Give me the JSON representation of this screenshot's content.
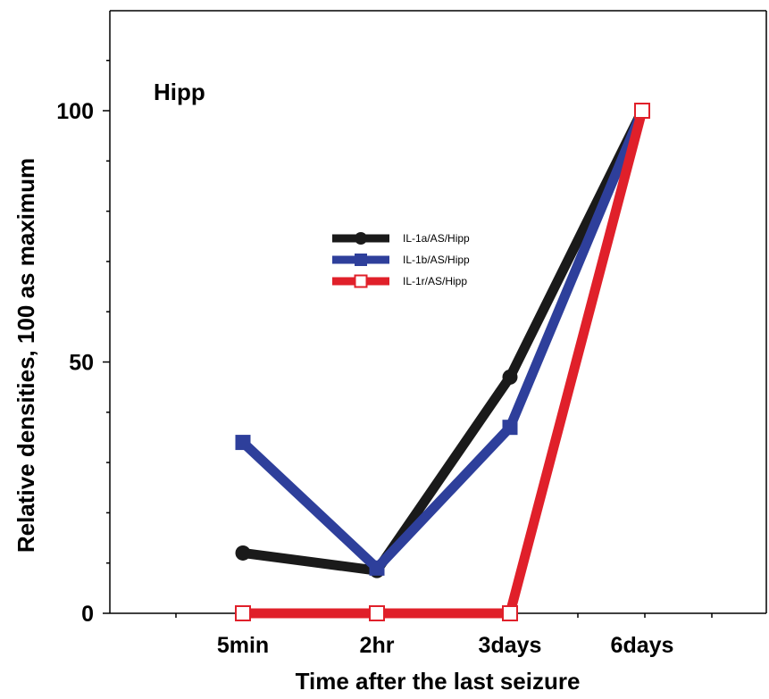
{
  "chart_data": {
    "type": "line",
    "categories": [
      "5min",
      "2hr",
      "3days",
      "6days"
    ],
    "ylim": [
      0,
      115
    ],
    "yticks": [
      0,
      50,
      100
    ],
    "ylabel": "Relative densities, 100 as maximum",
    "xlabel": "Time after the last seizure",
    "annotation": "Hipp",
    "grid": false,
    "legend_position": "center",
    "series": [
      {
        "name": "IL-1a/AS/Hipp",
        "color": "#1a1a1a",
        "marker": "circle",
        "values": [
          12,
          8.5,
          47,
          100
        ]
      },
      {
        "name": "IL-1b/AS/Hipp",
        "color": "#2e3f9b",
        "marker": "square",
        "values": [
          34,
          9,
          37,
          100
        ]
      },
      {
        "name": "IL-1r/AS/Hipp",
        "color": "#e0202a",
        "marker": "open-square",
        "values": [
          0,
          0,
          0,
          100
        ]
      }
    ]
  }
}
